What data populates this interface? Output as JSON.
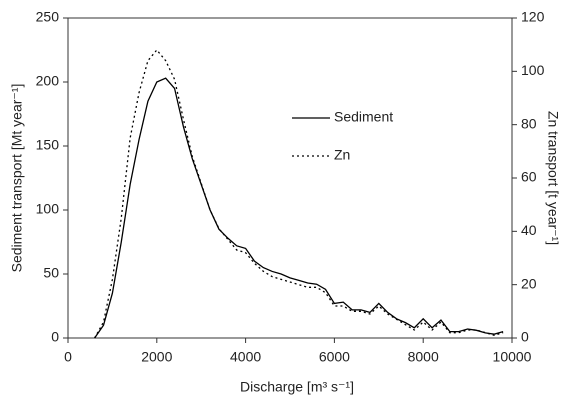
{
  "chart_data": {
    "type": "line",
    "x_label": "Discharge [m³ s⁻¹]",
    "y_label": "Sediment transport [Mt year⁻¹]",
    "y2_label": "Zn transport [t year⁻¹]",
    "x": [
      600,
      800,
      1000,
      1200,
      1400,
      1600,
      1800,
      2000,
      2200,
      2400,
      2600,
      2800,
      3000,
      3200,
      3400,
      3600,
      3800,
      4000,
      4200,
      4400,
      4600,
      4800,
      5000,
      5200,
      5400,
      5600,
      5800,
      6000,
      6200,
      6400,
      6600,
      6800,
      7000,
      7200,
      7400,
      7600,
      7800,
      8000,
      8200,
      8400,
      8600,
      8800,
      9000,
      9200,
      9400,
      9600,
      9800
    ],
    "series": [
      {
        "name": "Sediment",
        "color": "#000000",
        "dash": "solid",
        "values": [
          0,
          10,
          35,
          75,
          120,
          155,
          185,
          200,
          203,
          195,
          165,
          140,
          120,
          100,
          85,
          78,
          72,
          70,
          60,
          55,
          52,
          50,
          47,
          45,
          43,
          42,
          38,
          27,
          28,
          22,
          22,
          20,
          27,
          20,
          15,
          12,
          8,
          15,
          8,
          14,
          5,
          5,
          7,
          6,
          4,
          3,
          5
        ]
      },
      {
        "name": "Zn",
        "color": "#000000",
        "dash": "dotted",
        "axis": "y2",
        "values": [
          0,
          6,
          22,
          45,
          75,
          92,
          104,
          108,
          104,
          97,
          82,
          68,
          58,
          48,
          41,
          37,
          33,
          32,
          28,
          25,
          23,
          22,
          21,
          20,
          19,
          19,
          17,
          12,
          12,
          10,
          10,
          9,
          12,
          9,
          7,
          5,
          3,
          6,
          3,
          6,
          2,
          2,
          3,
          3,
          2,
          1,
          2
        ]
      }
    ],
    "xlim": [
      0,
      10000
    ],
    "xticks": [
      0,
      2000,
      4000,
      6000,
      8000,
      10000
    ],
    "ylim": [
      0,
      250
    ],
    "yticks": [
      0,
      50,
      100,
      150,
      200,
      250
    ],
    "y2lim": [
      0,
      120
    ],
    "y2ticks": [
      0,
      20,
      40,
      60,
      80,
      100,
      120
    ],
    "grid": false
  }
}
